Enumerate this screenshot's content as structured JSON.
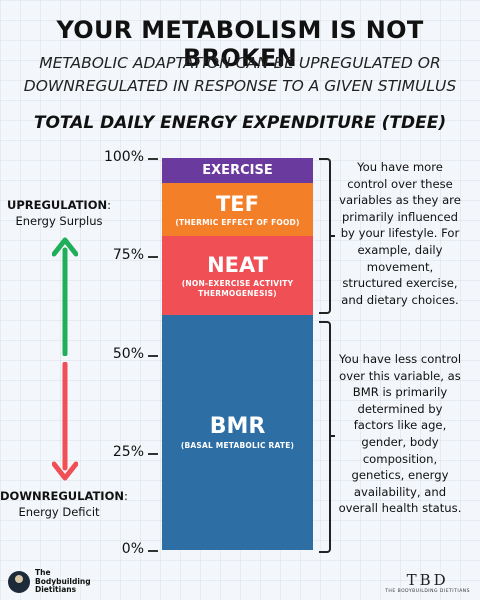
{
  "title": "YOUR METABOLISM IS NOT BROKEN",
  "subtitle_line1": "METABOLIC ADAPTATION CAN BE UPREGULATED OR",
  "subtitle_line2": "DOWNREGULATED IN RESPONSE TO A GIVEN STIMULUS",
  "heading": "TOTAL DAILY ENERGY EXPENDITURE (TDEE)",
  "axis_ticks": [
    "100%",
    "75%",
    "50%",
    "25%",
    "0%"
  ],
  "segments": {
    "exercise": {
      "label": "EXERCISE",
      "color": "#6a3a9e",
      "from": 93.5,
      "to": 100
    },
    "tef": {
      "label": "TEF",
      "sub": "(THERMIC EFFECT OF FOOD)",
      "color": "#f47f29",
      "from": 80,
      "to": 93.5
    },
    "neat": {
      "label": "NEAT",
      "sub_line1": "(NON-EXERCISE ACTIVITY",
      "sub_line2": "THERMOGENESIS)",
      "color": "#ef4f55",
      "from": 60,
      "to": 80
    },
    "bmr": {
      "label": "BMR",
      "sub": "(BASAL METABOLIC RATE)",
      "color": "#2d6ea4",
      "from": 0,
      "to": 60
    }
  },
  "upregulation": {
    "title": "UPREGULATION",
    "text": "Energy Surplus",
    "arrow_color": "#1fae5a"
  },
  "downregulation": {
    "title": "DOWNREGULATION",
    "text": "Energy Deficit",
    "arrow_color": "#ef4f55"
  },
  "upper_note": [
    "You have more",
    "control over these",
    "variables as they are",
    "primarily influenced",
    "by your lifestyle. For",
    "example, daily",
    "movement,",
    "structured exercise,",
    "and dietary choices."
  ],
  "lower_note": [
    "You have less control",
    "over this variable, as",
    "BMR is primarily",
    "determined by",
    "factors like age,",
    "gender, body",
    "composition,",
    "genetics, energy",
    "availability, and",
    "overall health status."
  ],
  "brand": {
    "line1": "The",
    "line2": "Bodybuilding",
    "line3": "Dietitians"
  },
  "logo": {
    "letters": "TBD",
    "tagline": "THE BODYBUILDING DIETITIANS"
  }
}
